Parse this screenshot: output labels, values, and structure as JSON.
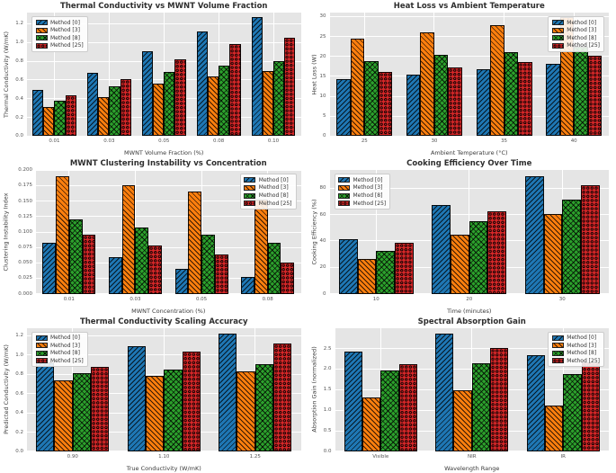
{
  "figure": {
    "background": "#ffffff",
    "axes_background": "#e5e5e5",
    "grid_color": "#ffffff",
    "title_color": "#2e2e2e",
    "tick_color": "#555555"
  },
  "methods": [
    {
      "label": "Method [0]",
      "color": "#1f77b4",
      "hatch": "/"
    },
    {
      "label": "Method [3]",
      "color": "#ff7f0e",
      "hatch": "\\"
    },
    {
      "label": "Method [8]",
      "color": "#2ca02c",
      "hatch": "x"
    },
    {
      "label": "Method [25]",
      "color": "#d62728",
      "hatch": "o"
    }
  ],
  "chart_data": [
    {
      "type": "bar",
      "title": "Thermal Conductivity vs MWNT Volume Fraction",
      "xlabel": "MWNT Volume Fraction (%)",
      "ylabel": "Thermal Conductivity (W/mK)",
      "categories": [
        "0.01",
        "0.03",
        "0.05",
        "0.08",
        "0.10"
      ],
      "series": [
        {
          "name": "Method [0]",
          "values": [
            0.49,
            0.68,
            0.91,
            1.12,
            1.27
          ]
        },
        {
          "name": "Method [3]",
          "values": [
            0.31,
            0.42,
            0.56,
            0.64,
            0.7
          ]
        },
        {
          "name": "Method [8]",
          "values": [
            0.38,
            0.53,
            0.69,
            0.75,
            0.8
          ]
        },
        {
          "name": "Method [25]",
          "values": [
            0.44,
            0.61,
            0.82,
            0.98,
            1.05
          ]
        }
      ],
      "ylim": [
        0,
        1.32
      ],
      "yticks": [
        "0.0",
        "0.2",
        "0.4",
        "0.6",
        "0.8",
        "1.0",
        "1.2"
      ],
      "grid": true,
      "legend_position": "upper-left"
    },
    {
      "type": "bar",
      "title": "Heat Loss vs Ambient Temperature",
      "xlabel": "Ambient Temperature (°C)",
      "ylabel": "Heat Loss (W)",
      "categories": [
        "25",
        "30",
        "35",
        "40"
      ],
      "series": [
        {
          "name": "Method [0]",
          "values": [
            14.2,
            15.5,
            16.8,
            18.2
          ]
        },
        {
          "name": "Method [3]",
          "values": [
            24.5,
            26.0,
            27.8,
            29.8
          ]
        },
        {
          "name": "Method [8]",
          "values": [
            18.9,
            20.3,
            21.1,
            22.4
          ]
        },
        {
          "name": "Method [25]",
          "values": [
            16.1,
            17.3,
            18.5,
            20.1
          ]
        }
      ],
      "ylim": [
        0,
        31
      ],
      "yticks": [
        "0",
        "5",
        "10",
        "15",
        "20",
        "25",
        "30"
      ],
      "grid": true,
      "legend_position": "upper-right"
    },
    {
      "type": "bar",
      "title": "MWNT Clustering Instability vs Concentration",
      "xlabel": "MWNT Concentration (%)",
      "ylabel": "Clustering Instability Index",
      "categories": [
        "0.01",
        "0.03",
        "0.05",
        "0.08"
      ],
      "series": [
        {
          "name": "Method [0]",
          "values": [
            0.082,
            0.059,
            0.041,
            0.027
          ]
        },
        {
          "name": "Method [3]",
          "values": [
            0.19,
            0.176,
            0.165,
            0.152
          ]
        },
        {
          "name": "Method [8]",
          "values": [
            0.121,
            0.108,
            0.096,
            0.083
          ]
        },
        {
          "name": "Method [25]",
          "values": [
            0.095,
            0.078,
            0.063,
            0.051
          ]
        }
      ],
      "ylim": [
        0,
        0.2
      ],
      "yticks": [
        "0.000",
        "0.025",
        "0.050",
        "0.075",
        "0.100",
        "0.125",
        "0.150",
        "0.175",
        "0.200"
      ],
      "grid": true,
      "legend_position": "upper-right"
    },
    {
      "type": "bar",
      "title": "Cooking Efficiency Over Time",
      "xlabel": "Time (minutes)",
      "ylabel": "Cooking Efficiency (%)",
      "categories": [
        "10",
        "20",
        "30"
      ],
      "series": [
        {
          "name": "Method [0]",
          "values": [
            41,
            67,
            89
          ]
        },
        {
          "name": "Method [3]",
          "values": [
            26.5,
            45,
            60.5
          ]
        },
        {
          "name": "Method [8]",
          "values": [
            32.5,
            55,
            71
          ]
        },
        {
          "name": "Method [25]",
          "values": [
            38.5,
            62.5,
            82
          ]
        }
      ],
      "ylim": [
        0,
        93.5
      ],
      "yticks": [
        "0",
        "20",
        "40",
        "60",
        "80"
      ],
      "grid": true,
      "legend_position": "upper-left"
    },
    {
      "type": "bar",
      "title": "Thermal Conductivity Scaling Accuracy",
      "xlabel": "True Conductivity (W/mK)",
      "ylabel": "Predicted Conductivity (W/mK)",
      "categories": [
        "0.90",
        "1.10",
        "1.25"
      ],
      "series": [
        {
          "name": "Method [0]",
          "values": [
            0.92,
            1.09,
            1.22
          ]
        },
        {
          "name": "Method [3]",
          "values": [
            0.74,
            0.78,
            0.83
          ]
        },
        {
          "name": "Method [8]",
          "values": [
            0.81,
            0.85,
            0.9
          ]
        },
        {
          "name": "Method [25]",
          "values": [
            0.88,
            1.03,
            1.12
          ]
        }
      ],
      "ylim": [
        0,
        1.28
      ],
      "yticks": [
        "0.0",
        "0.2",
        "0.4",
        "0.6",
        "0.8",
        "1.0",
        "1.2"
      ],
      "grid": true,
      "legend_position": "upper-left"
    },
    {
      "type": "bar",
      "title": "Spectral Absorption Gain",
      "xlabel": "Wavelength Range",
      "ylabel": "Absorption Gain (normalized)",
      "categories": [
        "Visible",
        "NIR",
        "IR"
      ],
      "series": [
        {
          "name": "Method [0]",
          "values": [
            2.42,
            2.87,
            2.33
          ]
        },
        {
          "name": "Method [3]",
          "values": [
            1.32,
            1.49,
            1.11
          ]
        },
        {
          "name": "Method [8]",
          "values": [
            1.96,
            2.13,
            1.88
          ]
        },
        {
          "name": "Method [25]",
          "values": [
            2.12,
            2.52,
            2.16
          ]
        }
      ],
      "ylim": [
        0,
        3.0
      ],
      "yticks": [
        "0.0",
        "0.5",
        "1.0",
        "1.5",
        "2.0",
        "2.5"
      ],
      "grid": true,
      "legend_position": "upper-right"
    }
  ]
}
